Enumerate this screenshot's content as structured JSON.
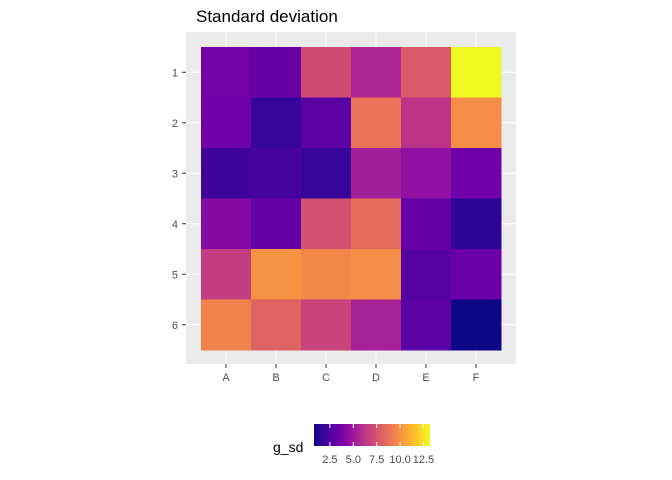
{
  "chart_data": {
    "type": "heatmap",
    "title": "Standard deviation",
    "x_categories": [
      "A",
      "B",
      "C",
      "D",
      "E",
      "F"
    ],
    "y_categories": [
      "1",
      "2",
      "3",
      "4",
      "5",
      "6"
    ],
    "values": [
      [
        3.5,
        3.2,
        7.2,
        5.6,
        7.8,
        13.2
      ],
      [
        3.4,
        1.8,
        2.8,
        8.8,
        6.2,
        9.8
      ],
      [
        2.0,
        2.2,
        1.8,
        5.2,
        4.6,
        3.4
      ],
      [
        4.2,
        3.0,
        7.4,
        8.6,
        3.2,
        1.6
      ],
      [
        6.6,
        10.0,
        9.6,
        9.8,
        2.6,
        3.3
      ],
      [
        9.4,
        8.2,
        6.8,
        5.4,
        2.8,
        0.8
      ]
    ],
    "legend": {
      "title": "g_sd",
      "placement": "bottom",
      "colorscale": "plasma",
      "range": [
        0.8,
        13.2
      ],
      "breaks": [
        2.5,
        5.0,
        7.5,
        10.0,
        12.5
      ],
      "break_labels": [
        "2.5",
        "5.0",
        "7.5",
        "10.0",
        "12.5"
      ]
    },
    "grid": true,
    "panel_background": "#ebebeb"
  }
}
